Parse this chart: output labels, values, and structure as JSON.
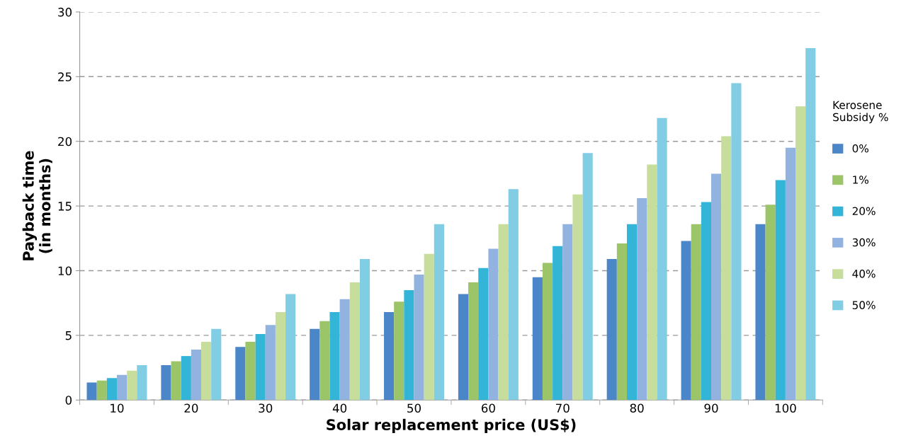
{
  "chart_data": {
    "type": "bar",
    "xlabel": "Solar replacement price (US$)",
    "ylabel": "Payback time\n(in months)",
    "legend_title": "Kerosene\nSubsidy %",
    "categories": [
      "10",
      "20",
      "30",
      "40",
      "50",
      "60",
      "70",
      "80",
      "90",
      "100"
    ],
    "series": [
      {
        "name": "0%",
        "color": "#4a86c8",
        "values": [
          1.35,
          2.7,
          4.1,
          5.5,
          6.8,
          8.2,
          9.5,
          10.9,
          12.3,
          13.6
        ]
      },
      {
        "name": "1%",
        "color": "#9cc468",
        "values": [
          1.5,
          3.0,
          4.5,
          6.1,
          7.6,
          9.1,
          10.6,
          12.1,
          13.6,
          15.1
        ]
      },
      {
        "name": "20%",
        "color": "#33b5d8",
        "values": [
          1.7,
          3.4,
          5.1,
          6.8,
          8.5,
          10.2,
          11.9,
          13.6,
          15.3,
          17.0
        ]
      },
      {
        "name": "30%",
        "color": "#92b3e0",
        "values": [
          1.95,
          3.9,
          5.8,
          7.8,
          9.7,
          11.7,
          13.6,
          15.6,
          17.5,
          19.5
        ]
      },
      {
        "name": "40%",
        "color": "#c6dd9c",
        "values": [
          2.27,
          4.5,
          6.8,
          9.1,
          11.3,
          13.6,
          15.9,
          18.2,
          20.4,
          22.7
        ]
      },
      {
        "name": "50%",
        "color": "#80cde4",
        "values": [
          2.7,
          5.5,
          8.2,
          10.9,
          13.6,
          16.3,
          19.1,
          21.8,
          24.5,
          27.2
        ]
      }
    ],
    "ylim": [
      0,
      30
    ],
    "yticks": [
      0,
      5,
      10,
      15,
      20,
      25,
      30
    ],
    "grid": "y",
    "legend": "right"
  }
}
